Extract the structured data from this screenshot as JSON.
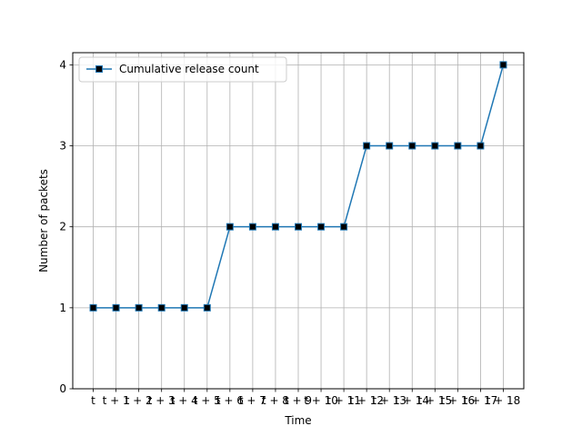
{
  "chart_data": {
    "type": "line",
    "xlabel": "Time",
    "ylabel": "Number of packets",
    "categories": [
      "t",
      "t + 1",
      "t + 2",
      "t + 3",
      "t + 4",
      "t + 5",
      "t + 6",
      "t + 7",
      "t + 8",
      "t + 9",
      "t + 10",
      "t + 11",
      "t + 12",
      "t + 13",
      "t + 14",
      "t + 15",
      "t + 16",
      "t + 17",
      "t + 18"
    ],
    "series": [
      {
        "name": "Cumulative release count",
        "values": [
          1,
          1,
          1,
          1,
          1,
          1,
          2,
          2,
          2,
          2,
          2,
          2,
          3,
          3,
          3,
          3,
          3,
          3,
          4
        ],
        "color": "#1f77b4",
        "marker": "square",
        "marker_color": "#000000"
      }
    ],
    "ylim": [
      0,
      4.15
    ],
    "yticks": [
      0,
      1,
      2,
      3,
      4
    ],
    "grid": true,
    "legend_position": "upper-left"
  }
}
